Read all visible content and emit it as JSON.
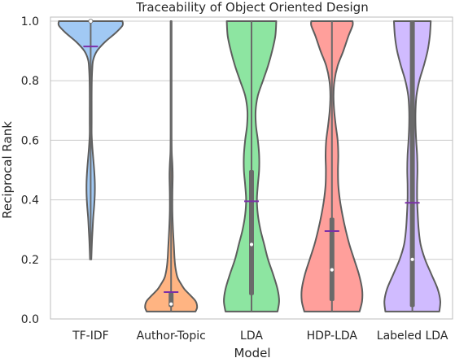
{
  "chart_data": {
    "type": "violin",
    "title": "Traceability of Object Oriented Design",
    "xlabel": "Model",
    "ylabel": "Reciprocal Rank",
    "ylim": [
      0.0,
      1.0
    ],
    "yticks": [
      0.0,
      0.2,
      0.4,
      0.6,
      0.8,
      1.0
    ],
    "ytick_labels": [
      "0.0",
      "0.2",
      "0.4",
      "0.6",
      "0.8",
      "1.0"
    ],
    "grid": "y",
    "categories": [
      "TF-IDF",
      "Author-Topic",
      "LDA",
      "HDP-LDA",
      "Labeled LDA"
    ],
    "series": [
      {
        "name": "TF-IDF",
        "color": "#a1c9f4",
        "mean": 0.915,
        "median": 1.0,
        "q1": 1.0,
        "q3": 1.0,
        "min": 0.2,
        "max": 1.0,
        "density": [
          [
            0.2,
            0.02
          ],
          [
            0.26,
            0.04
          ],
          [
            0.3,
            0.06
          ],
          [
            0.34,
            0.08
          ],
          [
            0.38,
            0.11
          ],
          [
            0.42,
            0.13
          ],
          [
            0.46,
            0.13
          ],
          [
            0.5,
            0.11
          ],
          [
            0.54,
            0.08
          ],
          [
            0.58,
            0.05
          ],
          [
            0.62,
            0.03
          ],
          [
            0.66,
            0.03
          ],
          [
            0.7,
            0.03
          ],
          [
            0.75,
            0.03
          ],
          [
            0.8,
            0.035
          ],
          [
            0.84,
            0.05
          ],
          [
            0.87,
            0.08
          ],
          [
            0.9,
            0.2
          ],
          [
            0.93,
            0.45
          ],
          [
            0.96,
            0.78
          ],
          [
            0.985,
            1.0
          ],
          [
            1.0,
            1.0
          ]
        ]
      },
      {
        "name": "Author-Topic",
        "color": "#ffb482",
        "mean": 0.09,
        "median": 0.05,
        "q1": 0.04,
        "q3": 0.09,
        "min": 0.025,
        "max": 1.0,
        "density": [
          [
            0.025,
            0.77
          ],
          [
            0.04,
            0.82
          ],
          [
            0.06,
            0.77
          ],
          [
            0.08,
            0.6
          ],
          [
            0.1,
            0.42
          ],
          [
            0.12,
            0.3
          ],
          [
            0.14,
            0.2
          ],
          [
            0.17,
            0.14
          ],
          [
            0.2,
            0.11
          ],
          [
            0.24,
            0.09
          ],
          [
            0.3,
            0.06
          ],
          [
            0.36,
            0.04
          ],
          [
            0.42,
            0.04
          ],
          [
            0.48,
            0.05
          ],
          [
            0.52,
            0.04
          ],
          [
            0.56,
            0.02
          ],
          [
            0.62,
            0.015
          ],
          [
            0.7,
            0.015
          ],
          [
            0.8,
            0.015
          ],
          [
            0.9,
            0.015
          ],
          [
            1.0,
            0.015
          ]
        ]
      },
      {
        "name": "LDA",
        "color": "#8de5a1",
        "mean": 0.395,
        "median": 0.25,
        "q1": 0.08,
        "q3": 0.5,
        "min": 0.025,
        "max": 1.0,
        "density": [
          [
            0.025,
            0.82
          ],
          [
            0.06,
            0.87
          ],
          [
            0.1,
            0.82
          ],
          [
            0.15,
            0.68
          ],
          [
            0.2,
            0.52
          ],
          [
            0.25,
            0.4
          ],
          [
            0.3,
            0.28
          ],
          [
            0.35,
            0.2
          ],
          [
            0.4,
            0.17
          ],
          [
            0.45,
            0.2
          ],
          [
            0.5,
            0.24
          ],
          [
            0.55,
            0.24
          ],
          [
            0.6,
            0.2
          ],
          [
            0.65,
            0.14
          ],
          [
            0.7,
            0.13
          ],
          [
            0.75,
            0.2
          ],
          [
            0.8,
            0.36
          ],
          [
            0.85,
            0.52
          ],
          [
            0.9,
            0.65
          ],
          [
            0.95,
            0.75
          ],
          [
            1.0,
            0.78
          ]
        ]
      },
      {
        "name": "HDP-LDA",
        "color": "#ff9f9b",
        "mean": 0.295,
        "median": 0.165,
        "q1": 0.06,
        "q3": 0.34,
        "min": 0.025,
        "max": 1.0,
        "density": [
          [
            0.025,
            0.87
          ],
          [
            0.06,
            0.95
          ],
          [
            0.1,
            0.95
          ],
          [
            0.15,
            0.85
          ],
          [
            0.2,
            0.7
          ],
          [
            0.25,
            0.55
          ],
          [
            0.3,
            0.43
          ],
          [
            0.35,
            0.33
          ],
          [
            0.4,
            0.25
          ],
          [
            0.45,
            0.2
          ],
          [
            0.5,
            0.19
          ],
          [
            0.55,
            0.2
          ],
          [
            0.6,
            0.18
          ],
          [
            0.65,
            0.12
          ],
          [
            0.7,
            0.07
          ],
          [
            0.75,
            0.05
          ],
          [
            0.8,
            0.08
          ],
          [
            0.85,
            0.18
          ],
          [
            0.9,
            0.36
          ],
          [
            0.95,
            0.52
          ],
          [
            0.985,
            0.65
          ],
          [
            1.0,
            0.65
          ]
        ]
      },
      {
        "name": "Labeled LDA",
        "color": "#d0bbff",
        "mean": 0.39,
        "median": 0.2,
        "q1": 0.04,
        "q3": 1.0,
        "min": 0.025,
        "max": 1.0,
        "density": [
          [
            0.025,
            0.85
          ],
          [
            0.06,
            0.88
          ],
          [
            0.1,
            0.8
          ],
          [
            0.15,
            0.6
          ],
          [
            0.2,
            0.4
          ],
          [
            0.25,
            0.26
          ],
          [
            0.3,
            0.2
          ],
          [
            0.35,
            0.17
          ],
          [
            0.4,
            0.15
          ],
          [
            0.45,
            0.15
          ],
          [
            0.5,
            0.16
          ],
          [
            0.55,
            0.15
          ],
          [
            0.6,
            0.12
          ],
          [
            0.65,
            0.1
          ],
          [
            0.7,
            0.1
          ],
          [
            0.75,
            0.13
          ],
          [
            0.8,
            0.22
          ],
          [
            0.85,
            0.36
          ],
          [
            0.9,
            0.48
          ],
          [
            0.95,
            0.55
          ],
          [
            1.0,
            0.58
          ]
        ]
      }
    ]
  },
  "colors": {
    "outline": "#5d5d5d",
    "grid": "#cccccc",
    "frame": "#bdbdbd",
    "box": "#6a6a6a",
    "mean_marker": "#7b2fa8",
    "median_marker": "#ffffff"
  }
}
